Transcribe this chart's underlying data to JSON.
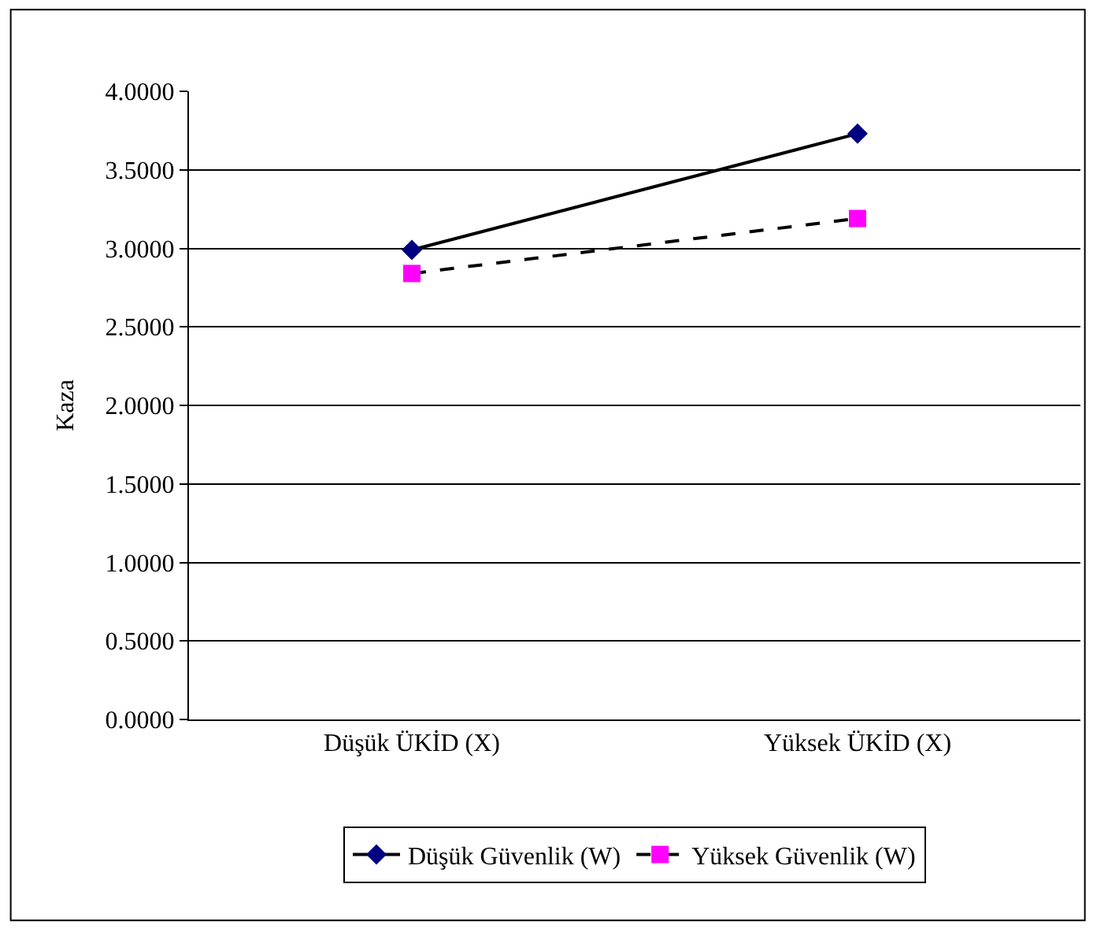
{
  "chart_data": {
    "type": "line",
    "ylabel": "Kaza",
    "categories": [
      "Düşük ÜKİD (X)",
      "Yüksek ÜKİD (X)"
    ],
    "series": [
      {
        "name": "Düşük Güvenlik (W)",
        "color": "#000080",
        "values": [
          2.99,
          3.73
        ],
        "marker": "diamond",
        "line_style": "solid"
      },
      {
        "name": "Yüksek Güvenlik (W)",
        "color": "#ff00ff",
        "values": [
          2.84,
          3.19
        ],
        "marker": "square",
        "line_style": "dashed"
      }
    ],
    "ylim": [
      0,
      4
    ],
    "yticks": [
      {
        "value": 0,
        "label": "0.0000"
      },
      {
        "value": 0.5,
        "label": "0.5000"
      },
      {
        "value": 1,
        "label": "1.0000"
      },
      {
        "value": 1.5,
        "label": "1.5000"
      },
      {
        "value": 2,
        "label": "2.0000"
      },
      {
        "value": 2.5,
        "label": "2.5000"
      },
      {
        "value": 3,
        "label": "3.0000"
      },
      {
        "value": 3.5,
        "label": "3.5000"
      },
      {
        "value": 4,
        "label": "4.0000"
      }
    ],
    "grid": "y",
    "legend": "bottom"
  }
}
